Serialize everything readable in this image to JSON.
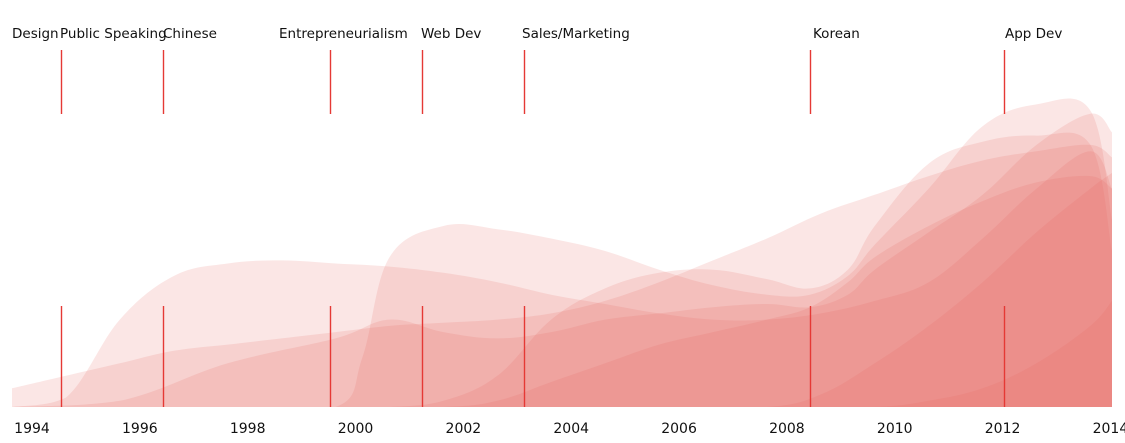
{
  "chart_data": {
    "type": "area",
    "title": "",
    "xlabel": "",
    "ylabel": "",
    "xlim": [
      1994,
      2014.4
    ],
    "ylim": [
      0,
      100
    ],
    "grid": false,
    "legend": "none",
    "x_ticks": [
      1994,
      1996,
      1998,
      2000,
      2002,
      2004,
      2006,
      2008,
      2010,
      2012,
      2014
    ],
    "x_tick_labels": [
      "1994",
      "1996",
      "1998",
      "2000",
      "2002",
      "2004",
      "2006",
      "2008",
      "2010",
      "2012",
      "2014"
    ],
    "milestones": [
      {
        "label": "Design",
        "x": 1994.9
      },
      {
        "label": "Public Speaking",
        "x": 1996.8
      },
      {
        "label": "Chinese",
        "x": 1996.8
      },
      {
        "label": "Entrepreneurialism",
        "x": 1999.9
      },
      {
        "label": "Web Dev",
        "x": 2001.6
      },
      {
        "label": "Sales/Marketing",
        "x": 2003.5
      },
      {
        "label": "Korean",
        "x": 2008.8
      },
      {
        "label": "App Dev",
        "x": 2012.4
      }
    ],
    "series": [
      {
        "x": [
          1994,
          1995,
          1996,
          1997,
          1998,
          1999,
          2000,
          2001,
          2002,
          2003,
          2004,
          2005,
          2006,
          2007,
          2008,
          2009,
          2010,
          2011,
          2012,
          2013,
          2014,
          2014.4
        ],
        "values": [
          6,
          10,
          14,
          18,
          20,
          22,
          24,
          26,
          27,
          28,
          30,
          34,
          40,
          47,
          54,
          62,
          68,
          74,
          79,
          82,
          84,
          80
        ]
      },
      {
        "x": [
          1994,
          1995,
          1996,
          1997,
          1998,
          1999,
          2000,
          2001,
          2002,
          2003,
          2004,
          2005,
          2006,
          2007,
          2008,
          2009,
          2010,
          2011,
          2012,
          2013,
          2014,
          2014.4
        ],
        "values": [
          0,
          3,
          28,
          42,
          46,
          47,
          46,
          45,
          43,
          40,
          36,
          33,
          30,
          28,
          28,
          30,
          34,
          40,
          54,
          70,
          82,
          70
        ]
      },
      {
        "x": [
          1994,
          1996,
          1998,
          2000,
          2000.5,
          2001,
          2002,
          2003,
          2004,
          2005,
          2006,
          2007,
          2008,
          2008.8,
          2009.5,
          2010,
          2011,
          2012,
          2013,
          2014,
          2014.4
        ],
        "values": [
          0,
          0,
          0,
          0,
          16,
          48,
          58,
          57,
          54,
          50,
          44,
          39,
          36,
          36,
          42,
          52,
          70,
          90,
          97,
          95,
          60
        ]
      },
      {
        "x": [
          1994,
          1996,
          1998,
          2000,
          2001,
          2002,
          2003,
          2004,
          2005,
          2006,
          2007,
          2008,
          2008.8,
          2009.5,
          2010,
          2011,
          2012,
          2013,
          2014,
          2014.4
        ],
        "values": [
          0,
          0,
          0,
          0,
          0,
          2,
          10,
          28,
          38,
          43,
          44,
          41,
          38,
          44,
          58,
          78,
          85,
          87,
          84,
          50
        ]
      },
      {
        "x": [
          1994,
          1996,
          1998,
          2000,
          2001,
          2002,
          2003,
          2004,
          2005,
          2006,
          2007,
          2008,
          2008.8,
          2009.5,
          2010,
          2011,
          2012,
          2013,
          2014,
          2014.4
        ],
        "values": [
          0,
          2,
          14,
          22,
          28,
          24,
          22,
          24,
          28,
          30,
          32,
          33,
          32,
          36,
          44,
          56,
          68,
          84,
          94,
          88
        ]
      },
      {
        "x": [
          1994,
          1996,
          1998,
          2000,
          2002,
          2003,
          2004,
          2005,
          2006,
          2007,
          2008,
          2008.8,
          2009.5,
          2010,
          2011,
          2012,
          2013,
          2014,
          2014.4
        ],
        "values": [
          0,
          0,
          0,
          0,
          0,
          2,
          8,
          14,
          20,
          24,
          28,
          32,
          40,
          48,
          58,
          66,
          72,
          74,
          70
        ]
      },
      {
        "x": [
          1994,
          1996,
          1998,
          2000,
          2002,
          2004,
          2006,
          2008,
          2009,
          2010,
          2011,
          2012,
          2013,
          2014,
          2014.4
        ],
        "values": [
          0,
          0,
          0,
          0,
          0,
          0,
          0,
          0,
          4,
          14,
          26,
          40,
          56,
          70,
          75
        ]
      },
      {
        "x": [
          1994,
          1996,
          1998,
          2000,
          2002,
          2004,
          2006,
          2008,
          2010,
          2011,
          2012,
          2013,
          2014,
          2014.4
        ],
        "values": [
          0,
          0,
          0,
          0,
          0,
          0,
          0,
          0,
          0,
          2,
          6,
          14,
          26,
          34
        ]
      }
    ],
    "colors": {
      "fill": "#e8655f",
      "line": "#e53935",
      "text": "#111111"
    }
  }
}
